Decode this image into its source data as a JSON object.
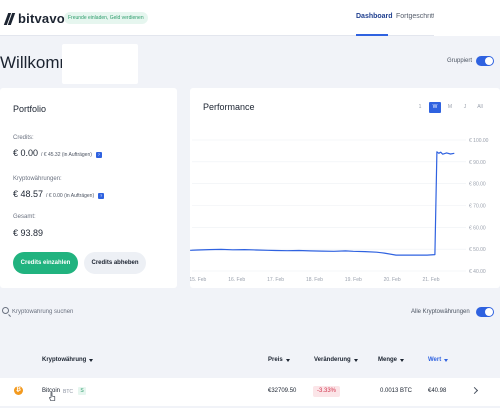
{
  "header": {
    "logo_text": "bitvavo",
    "promo_badge": "Freunde einladen, Geld verdienen",
    "nav": {
      "dashboard": "Dashboard",
      "advanced": "Fortgeschrittene"
    }
  },
  "welcome_text": "Willkomm",
  "grouped": {
    "label": "Gruppiert",
    "on": true
  },
  "portfolio": {
    "title": "Portfolio",
    "credits_label": "Credits:",
    "credits_value": "€ 0.00",
    "credits_orders": "/ € 45.32 (in Aufträgen)",
    "crypto_label": "Kryptowährungen:",
    "crypto_value": "€ 48.57",
    "crypto_orders": "/ € 0.00 (in Aufträgen)",
    "total_label": "Gesamt:",
    "total_value": "€ 93.89",
    "deposit_button": "Credits einzahlen",
    "withdraw_button": "Credits abheben",
    "info_icon": "info-icon",
    "info_glyph": "?"
  },
  "performance": {
    "title": "Performance",
    "ranges": [
      "1",
      "W",
      "M",
      "J",
      "All"
    ],
    "selected_range": "W"
  },
  "chart_data": {
    "type": "line",
    "title": "Performance",
    "xlabel": "",
    "ylabel": "",
    "x_ticks": [
      "15. Feb",
      "16. Feb",
      "17. Feb",
      "18. Feb",
      "19. Feb",
      "20. Feb",
      "21. Feb"
    ],
    "y_ticks": [
      "€ 40.00",
      "€ 50.00",
      "€ 60.00",
      "€ 70.00",
      "€ 80.00",
      "€ 90.00",
      "€ 100.00"
    ],
    "ylim": [
      40,
      100
    ],
    "grid": true,
    "series": [
      {
        "color": "#2f62e0",
        "x": [
          14.8,
          15.0,
          15.3,
          15.6,
          15.9,
          16.2,
          16.5,
          16.8,
          17.0,
          17.3,
          17.6,
          17.9,
          18.2,
          18.5,
          18.8,
          19.0,
          19.3,
          19.6,
          19.8,
          20.1,
          20.4,
          20.7,
          20.9,
          21.1,
          21.15,
          21.2,
          21.25,
          21.3,
          21.4,
          21.5,
          21.6
        ],
        "y": [
          49.5,
          49.6,
          49.8,
          49.9,
          49.7,
          49.8,
          49.6,
          49.5,
          49.4,
          49.3,
          49.4,
          49.2,
          49.1,
          49.0,
          49.2,
          49.0,
          48.9,
          48.6,
          48.2,
          47.3,
          47.3,
          47.3,
          47.3,
          47.5,
          94.6,
          93.9,
          94.4,
          93.5,
          94.1,
          93.6,
          93.9
        ]
      }
    ]
  },
  "search": {
    "placeholder": "Kryptowährung suchen",
    "all_crypto_label": "Alle Kryptowährungen",
    "all_crypto_on": true
  },
  "table": {
    "headers": {
      "currency": "Kryptowährung",
      "price": "Preis",
      "change": "Veränderung",
      "amount": "Menge",
      "value": "Wert"
    },
    "rows": [
      {
        "icon": "bitcoin-icon",
        "icon_glyph": "₿",
        "name": "Bitcoin",
        "symbol": "BTC",
        "badge": "S",
        "price": "€32709.50",
        "change": "-3.33%",
        "amount": "0.0013 BTC",
        "value": "€40.98"
      }
    ]
  },
  "colors": {
    "accent": "#2f62e0",
    "success": "#21b37f",
    "negative": "#d2334c",
    "bitcoin": "#f39a1f"
  }
}
